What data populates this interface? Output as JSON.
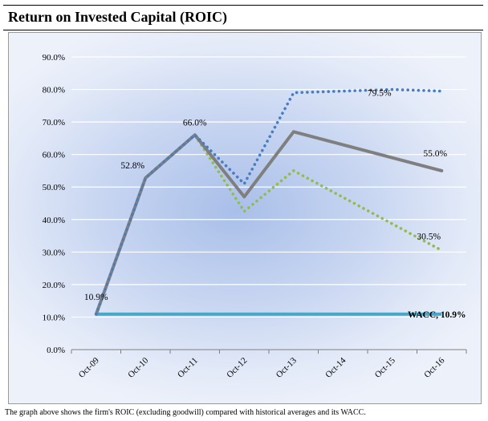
{
  "header": {
    "title": "Return on Invested Capital (ROIC)"
  },
  "caption": "The graph above shows the firm's ROIC (excluding goodwill) compared with historical averages and its WACC.",
  "colors": {
    "blue_dotted": "#4a7cc0",
    "gray_solid": "#7f7f7f",
    "green_dotted": "#93bb4e",
    "wacc": "#46a7c6"
  },
  "chart_data": {
    "type": "line",
    "categories": [
      "Oct-09",
      "Oct-10",
      "Oct-11",
      "Oct-12",
      "Oct-13",
      "Oct-14",
      "Oct-15",
      "Oct-16"
    ],
    "ylim": [
      0,
      90
    ],
    "yticks": [
      "0.0%",
      "10.0%",
      "20.0%",
      "30.0%",
      "40.0%",
      "50.0%",
      "60.0%",
      "70.0%",
      "80.0%",
      "90.0%"
    ],
    "grid": true,
    "series": [
      {
        "style": "dotted",
        "color": "#4a7cc0",
        "values": [
          10.9,
          52.8,
          66.0,
          51.0,
          79.0,
          79.5,
          80.0,
          79.5
        ]
      },
      {
        "style": "solid",
        "color": "#7f7f7f",
        "values": [
          10.9,
          52.8,
          66.0,
          47.0,
          67.0,
          null,
          null,
          55.0
        ]
      },
      {
        "style": "dotted",
        "color": "#93bb4e",
        "values": [
          10.9,
          52.8,
          66.0,
          42.5,
          55.0,
          null,
          null,
          30.5
        ]
      },
      {
        "name": "WACC",
        "style": "solid",
        "color": "#46a7c6",
        "values": [
          10.9,
          10.9,
          10.9,
          10.9,
          10.9,
          10.9,
          10.9,
          10.9
        ]
      }
    ],
    "data_labels": [
      {
        "text": "10.9%",
        "category": "Oct-09",
        "value": 10.9
      },
      {
        "text": "52.8%",
        "category": "Oct-10",
        "value": 52.8
      },
      {
        "text": "66.0%",
        "category": "Oct-11",
        "value": 66.0
      },
      {
        "text": "79.5%",
        "category": "Oct-15",
        "value": 79.5
      },
      {
        "text": "55.0%",
        "category": "Oct-16",
        "value": 55.0
      },
      {
        "text": "30.5%",
        "category": "Oct-16",
        "value": 30.5
      },
      {
        "text": "WACC, 10.9%",
        "category": "Oct-16",
        "value": 10.9
      }
    ]
  }
}
